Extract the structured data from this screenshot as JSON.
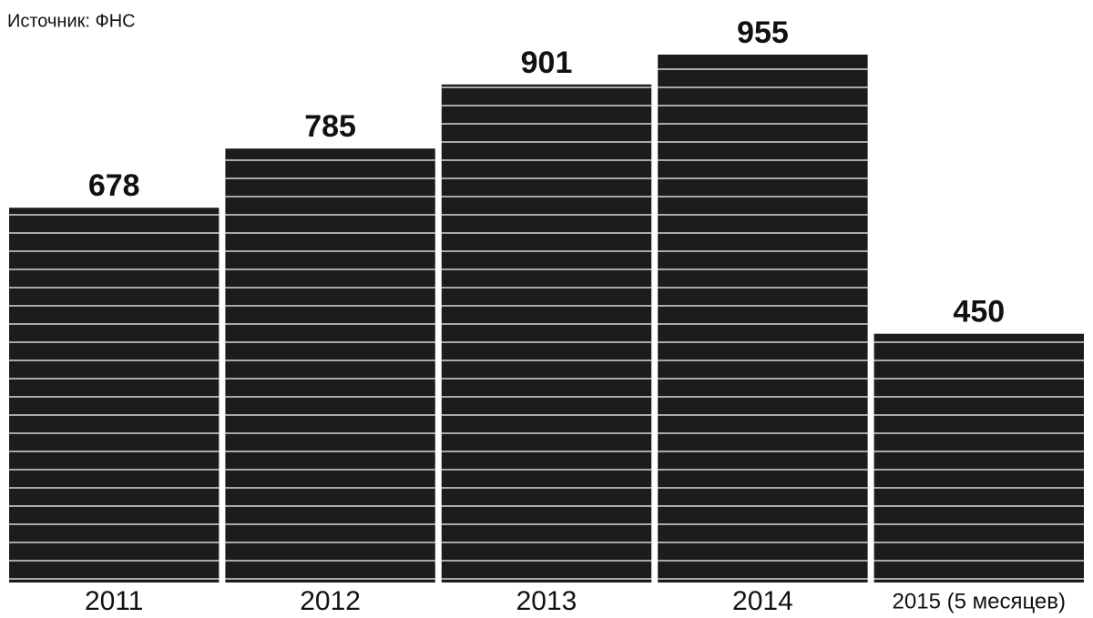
{
  "chart_data": {
    "type": "bar",
    "subtitle": "Источник: ФНС",
    "categories": [
      "2011",
      "2012",
      "2013",
      "2014",
      "2015 (5 месяцев)"
    ],
    "values": [
      678,
      785,
      901,
      955,
      450
    ],
    "color": "#1c1c1c"
  }
}
